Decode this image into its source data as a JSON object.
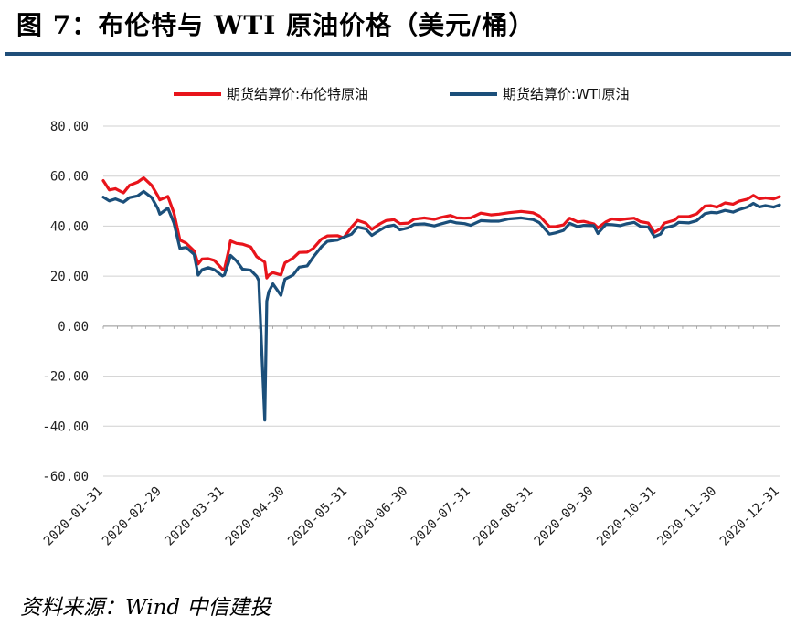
{
  "figure": {
    "title": "图 7：布伦特与 WTI 原油价格（美元/桶）",
    "source": "资料来源：Wind 中信建投"
  },
  "colors": {
    "title_rule": "#1f4e79",
    "grid": "#d0d0d0"
  },
  "chart_data": {
    "type": "line",
    "legend_position": "top-center",
    "grid": true,
    "ylim": [
      -60,
      80
    ],
    "yticks": [
      80,
      60,
      40,
      20,
      0,
      -20,
      -40,
      -60
    ],
    "ytick_labels": [
      "80.00",
      "60.00",
      "40.00",
      "20.00",
      "0.00",
      "-20.00",
      "-40.00",
      "-60.00"
    ],
    "xlim": [
      "2020-01-31",
      "2020-12-31"
    ],
    "xticks": [
      "2020-01-31",
      "2020-02-29",
      "2020-03-31",
      "2020-04-30",
      "2020-05-31",
      "2020-06-30",
      "2020-07-31",
      "2020-08-31",
      "2020-09-30",
      "2020-10-31",
      "2020-11-30",
      "2020-12-31"
    ],
    "series": [
      {
        "name": "期货结算价:布伦特原油",
        "color": "#e8141b",
        "points": [
          [
            "2020-01-31",
            58.2
          ],
          [
            "2020-02-03",
            54.5
          ],
          [
            "2020-02-06",
            55.0
          ],
          [
            "2020-02-10",
            53.3
          ],
          [
            "2020-02-13",
            56.3
          ],
          [
            "2020-02-17",
            57.6
          ],
          [
            "2020-02-20",
            59.3
          ],
          [
            "2020-02-24",
            56.3
          ],
          [
            "2020-02-27",
            52.2
          ],
          [
            "2020-02-28",
            50.5
          ],
          [
            "2020-03-03",
            51.9
          ],
          [
            "2020-03-06",
            45.3
          ],
          [
            "2020-03-09",
            34.4
          ],
          [
            "2020-03-12",
            33.2
          ],
          [
            "2020-03-16",
            30.1
          ],
          [
            "2020-03-18",
            24.9
          ],
          [
            "2020-03-20",
            26.9
          ],
          [
            "2020-03-23",
            27.0
          ],
          [
            "2020-03-26",
            26.3
          ],
          [
            "2020-03-30",
            22.8
          ],
          [
            "2020-03-31",
            22.7
          ],
          [
            "2020-04-02",
            29.9
          ],
          [
            "2020-04-03",
            34.1
          ],
          [
            "2020-04-06",
            33.1
          ],
          [
            "2020-04-09",
            32.8
          ],
          [
            "2020-04-13",
            31.7
          ],
          [
            "2020-04-16",
            27.8
          ],
          [
            "2020-04-20",
            25.6
          ],
          [
            "2020-04-21",
            19.3
          ],
          [
            "2020-04-22",
            20.4
          ],
          [
            "2020-04-24",
            21.4
          ],
          [
            "2020-04-28",
            20.5
          ],
          [
            "2020-04-30",
            25.3
          ],
          [
            "2020-05-04",
            27.2
          ],
          [
            "2020-05-07",
            29.5
          ],
          [
            "2020-05-11",
            29.6
          ],
          [
            "2020-05-14",
            31.1
          ],
          [
            "2020-05-18",
            34.8
          ],
          [
            "2020-05-21",
            36.1
          ],
          [
            "2020-05-26",
            36.2
          ],
          [
            "2020-05-29",
            35.3
          ],
          [
            "2020-06-02",
            39.6
          ],
          [
            "2020-06-05",
            42.3
          ],
          [
            "2020-06-09",
            41.2
          ],
          [
            "2020-06-12",
            38.7
          ],
          [
            "2020-06-16",
            40.9
          ],
          [
            "2020-06-19",
            42.2
          ],
          [
            "2020-06-23",
            42.6
          ],
          [
            "2020-06-26",
            41.0
          ],
          [
            "2020-06-30",
            41.2
          ],
          [
            "2020-07-03",
            42.8
          ],
          [
            "2020-07-08",
            43.3
          ],
          [
            "2020-07-13",
            42.7
          ],
          [
            "2020-07-16",
            43.4
          ],
          [
            "2020-07-21",
            44.3
          ],
          [
            "2020-07-24",
            43.3
          ],
          [
            "2020-07-28",
            43.2
          ],
          [
            "2020-07-31",
            43.3
          ],
          [
            "2020-08-05",
            45.2
          ],
          [
            "2020-08-10",
            44.5
          ],
          [
            "2020-08-14",
            44.8
          ],
          [
            "2020-08-19",
            45.4
          ],
          [
            "2020-08-25",
            45.9
          ],
          [
            "2020-08-31",
            45.3
          ],
          [
            "2020-09-03",
            44.1
          ],
          [
            "2020-09-08",
            39.8
          ],
          [
            "2020-09-11",
            39.8
          ],
          [
            "2020-09-15",
            40.5
          ],
          [
            "2020-09-18",
            43.2
          ],
          [
            "2020-09-22",
            41.7
          ],
          [
            "2020-09-25",
            41.9
          ],
          [
            "2020-09-30",
            40.9
          ],
          [
            "2020-10-02",
            39.3
          ],
          [
            "2020-10-06",
            41.7
          ],
          [
            "2020-10-09",
            42.9
          ],
          [
            "2020-10-13",
            42.5
          ],
          [
            "2020-10-16",
            42.9
          ],
          [
            "2020-10-20",
            43.2
          ],
          [
            "2020-10-23",
            41.8
          ],
          [
            "2020-10-27",
            41.2
          ],
          [
            "2020-10-30",
            37.5
          ],
          [
            "2020-11-02",
            39.0
          ],
          [
            "2020-11-04",
            41.2
          ],
          [
            "2020-11-09",
            42.4
          ],
          [
            "2020-11-11",
            43.8
          ],
          [
            "2020-11-16",
            43.8
          ],
          [
            "2020-11-20",
            44.9
          ],
          [
            "2020-11-24",
            48.0
          ],
          [
            "2020-11-27",
            48.2
          ],
          [
            "2020-11-30",
            47.6
          ],
          [
            "2020-12-04",
            49.3
          ],
          [
            "2020-12-08",
            48.8
          ],
          [
            "2020-12-11",
            50.0
          ],
          [
            "2020-12-15",
            50.8
          ],
          [
            "2020-12-18",
            52.3
          ],
          [
            "2020-12-21",
            50.9
          ],
          [
            "2020-12-24",
            51.3
          ],
          [
            "2020-12-28",
            50.9
          ],
          [
            "2020-12-31",
            51.8
          ]
        ]
      },
      {
        "name": "期货结算价:WTI原油",
        "color": "#1b4f7a",
        "points": [
          [
            "2020-01-31",
            51.6
          ],
          [
            "2020-02-03",
            50.1
          ],
          [
            "2020-02-06",
            50.9
          ],
          [
            "2020-02-10",
            49.6
          ],
          [
            "2020-02-13",
            51.4
          ],
          [
            "2020-02-17",
            52.1
          ],
          [
            "2020-02-20",
            53.9
          ],
          [
            "2020-02-24",
            51.4
          ],
          [
            "2020-02-27",
            47.1
          ],
          [
            "2020-02-28",
            44.8
          ],
          [
            "2020-03-03",
            47.2
          ],
          [
            "2020-03-06",
            41.3
          ],
          [
            "2020-03-09",
            31.1
          ],
          [
            "2020-03-12",
            31.5
          ],
          [
            "2020-03-16",
            28.7
          ],
          [
            "2020-03-18",
            20.4
          ],
          [
            "2020-03-20",
            22.6
          ],
          [
            "2020-03-23",
            23.4
          ],
          [
            "2020-03-26",
            22.6
          ],
          [
            "2020-03-30",
            20.1
          ],
          [
            "2020-03-31",
            20.5
          ],
          [
            "2020-04-02",
            25.3
          ],
          [
            "2020-04-03",
            28.3
          ],
          [
            "2020-04-06",
            26.1
          ],
          [
            "2020-04-09",
            22.8
          ],
          [
            "2020-04-13",
            22.4
          ],
          [
            "2020-04-16",
            19.9
          ],
          [
            "2020-04-17",
            18.3
          ],
          [
            "2020-04-20",
            -37.6
          ],
          [
            "2020-04-21",
            10.0
          ],
          [
            "2020-04-22",
            13.8
          ],
          [
            "2020-04-24",
            16.9
          ],
          [
            "2020-04-28",
            12.3
          ],
          [
            "2020-04-30",
            18.8
          ],
          [
            "2020-05-04",
            20.4
          ],
          [
            "2020-05-07",
            23.6
          ],
          [
            "2020-05-11",
            24.1
          ],
          [
            "2020-05-14",
            27.6
          ],
          [
            "2020-05-18",
            31.7
          ],
          [
            "2020-05-21",
            33.9
          ],
          [
            "2020-05-26",
            34.4
          ],
          [
            "2020-05-29",
            35.5
          ],
          [
            "2020-06-02",
            36.8
          ],
          [
            "2020-06-05",
            39.6
          ],
          [
            "2020-06-09",
            38.9
          ],
          [
            "2020-06-12",
            36.3
          ],
          [
            "2020-06-16",
            38.4
          ],
          [
            "2020-06-19",
            39.8
          ],
          [
            "2020-06-23",
            40.4
          ],
          [
            "2020-06-26",
            38.5
          ],
          [
            "2020-06-30",
            39.3
          ],
          [
            "2020-07-03",
            40.7
          ],
          [
            "2020-07-08",
            40.9
          ],
          [
            "2020-07-13",
            40.1
          ],
          [
            "2020-07-16",
            40.8
          ],
          [
            "2020-07-21",
            41.9
          ],
          [
            "2020-07-24",
            41.3
          ],
          [
            "2020-07-28",
            41.0
          ],
          [
            "2020-07-31",
            40.3
          ],
          [
            "2020-08-05",
            42.2
          ],
          [
            "2020-08-10",
            42.0
          ],
          [
            "2020-08-14",
            42.0
          ],
          [
            "2020-08-19",
            42.9
          ],
          [
            "2020-08-25",
            43.3
          ],
          [
            "2020-08-31",
            42.6
          ],
          [
            "2020-09-03",
            41.4
          ],
          [
            "2020-09-08",
            36.8
          ],
          [
            "2020-09-11",
            37.3
          ],
          [
            "2020-09-15",
            38.3
          ],
          [
            "2020-09-18",
            41.1
          ],
          [
            "2020-09-22",
            39.8
          ],
          [
            "2020-09-25",
            40.3
          ],
          [
            "2020-09-30",
            40.2
          ],
          [
            "2020-10-02",
            37.1
          ],
          [
            "2020-10-06",
            40.7
          ],
          [
            "2020-10-09",
            40.6
          ],
          [
            "2020-10-13",
            40.2
          ],
          [
            "2020-10-16",
            40.9
          ],
          [
            "2020-10-20",
            41.5
          ],
          [
            "2020-10-23",
            39.9
          ],
          [
            "2020-10-27",
            39.6
          ],
          [
            "2020-10-30",
            35.8
          ],
          [
            "2020-11-02",
            36.8
          ],
          [
            "2020-11-04",
            39.2
          ],
          [
            "2020-11-09",
            40.3
          ],
          [
            "2020-11-11",
            41.5
          ],
          [
            "2020-11-16",
            41.3
          ],
          [
            "2020-11-20",
            42.2
          ],
          [
            "2020-11-24",
            45.0
          ],
          [
            "2020-11-27",
            45.5
          ],
          [
            "2020-11-30",
            45.3
          ],
          [
            "2020-12-04",
            46.3
          ],
          [
            "2020-12-08",
            45.6
          ],
          [
            "2020-12-11",
            46.6
          ],
          [
            "2020-12-15",
            47.6
          ],
          [
            "2020-12-18",
            49.1
          ],
          [
            "2020-12-21",
            47.7
          ],
          [
            "2020-12-24",
            48.2
          ],
          [
            "2020-12-28",
            47.6
          ],
          [
            "2020-12-31",
            48.5
          ]
        ]
      }
    ]
  }
}
